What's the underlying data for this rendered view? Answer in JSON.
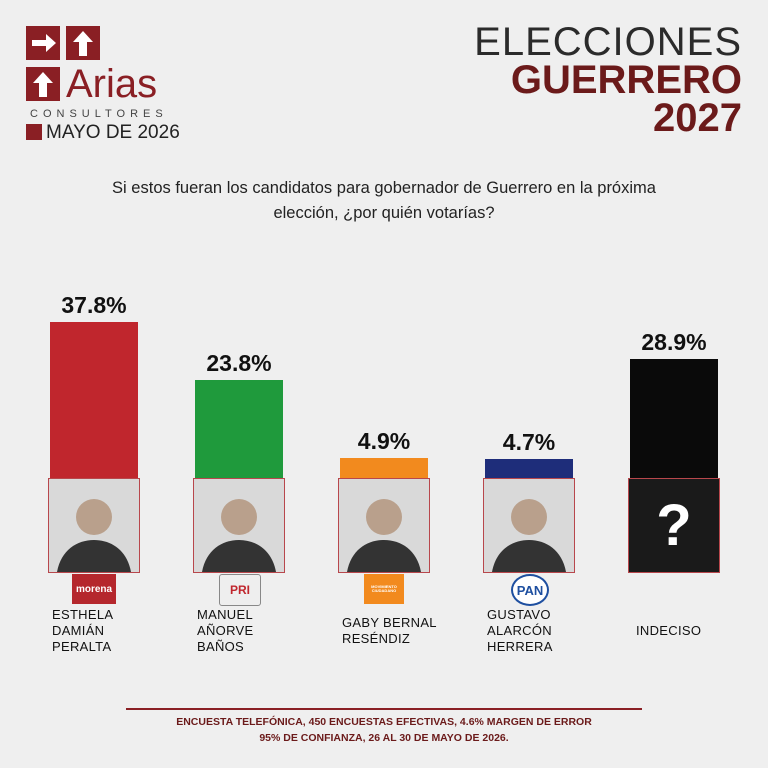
{
  "logo": {
    "name": "Arias",
    "subtitle": "CONSULTORES",
    "date": "MAYO DE 2026"
  },
  "header": {
    "line1": "ELECCIONES",
    "line2": "GUERRERO",
    "line3": "2027"
  },
  "chart_data": {
    "type": "bar",
    "title": "Si estos fueran los candidatos para gobernador de Guerrero en la próxima elección, ¿por quién votarías?",
    "categories": [
      "ESTHELA DAMIÁN PERALTA",
      "MANUEL AÑORVE BAÑOS",
      "GABY BERNAL RESÉNDIZ",
      "GUSTAVO ALARCÓN HERRERA",
      "INDECISO"
    ],
    "values": [
      37.8,
      23.8,
      4.9,
      4.7,
      28.9
    ],
    "value_labels": [
      "37.8%",
      "23.8%",
      "4.9%",
      "4.7%",
      "28.9%"
    ],
    "colors": [
      "#c0262d",
      "#1f9a3c",
      "#f28a1e",
      "#1e2d7a",
      "#0a0a0a"
    ],
    "parties": [
      "morena",
      "PRI",
      "MOVIMIENTO CIUDADANO",
      "PAN",
      null
    ],
    "undecided_mark": "?"
  },
  "footer": {
    "line1": "ENCUESTA TELEFÓNICA, 450 ENCUESTAS EFECTIVAS, 4.6%  MARGEN DE ERROR",
    "line2": "95% DE CONFIANZA, 26 AL 30 DE MAYO DE 2026."
  }
}
